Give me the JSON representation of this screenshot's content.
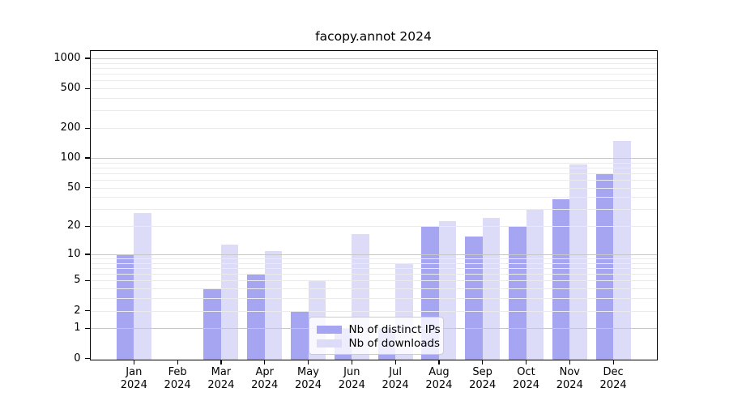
{
  "chart_data": {
    "type": "bar",
    "title": "facopy.annot 2024",
    "year": "2024",
    "categories": [
      "Jan",
      "Feb",
      "Mar",
      "Apr",
      "May",
      "Jun",
      "Jul",
      "Aug",
      "Sep",
      "Oct",
      "Nov",
      "Dec"
    ],
    "series": [
      {
        "name": "Nb of distinct IPs",
        "color": "#a5a5f2",
        "values": [
          10,
          0,
          4,
          6,
          2,
          1,
          1,
          20,
          16,
          20,
          39,
          70
        ]
      },
      {
        "name": "Nb of downloads",
        "color": "#dcdcf9",
        "values": [
          28,
          0,
          13,
          11,
          5,
          17,
          8,
          23,
          25,
          30,
          87,
          150
        ]
      }
    ],
    "yticks": [
      0,
      1,
      2,
      5,
      10,
      20,
      50,
      100,
      200,
      500,
      1000
    ],
    "scale": "log1p",
    "ylim": [
      0,
      1190
    ],
    "grid": true,
    "legend_position": "bottom-center",
    "legend": [
      "Nb of distinct IPs",
      "Nb of downloads"
    ]
  }
}
